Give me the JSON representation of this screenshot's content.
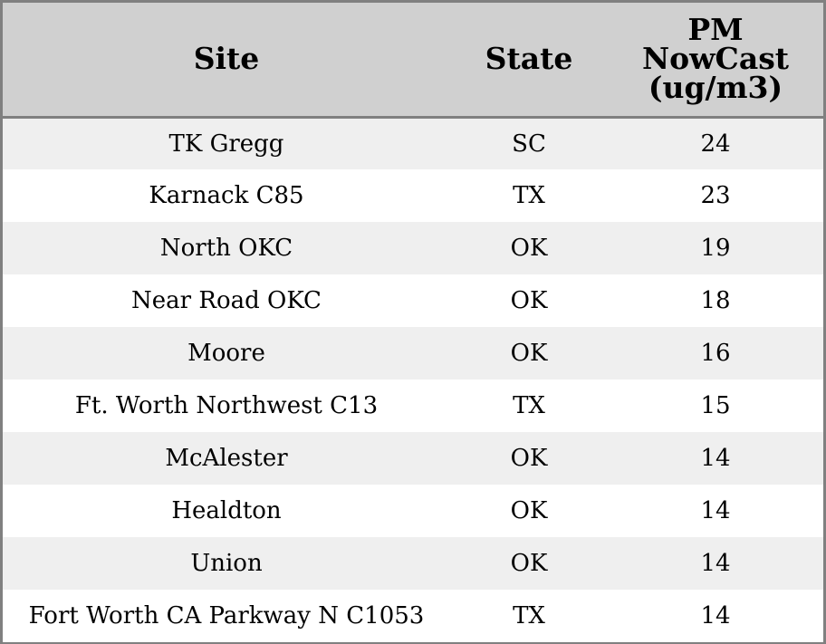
{
  "chart_data": {
    "type": "table",
    "columns": [
      "Site",
      "State",
      "PM\nNowCast\n(ug/m3)"
    ],
    "column_lines": {
      "site": [
        "Site"
      ],
      "state": [
        "State"
      ],
      "pm": [
        "PM",
        "NowCast",
        "(ug/m3)"
      ]
    },
    "rows": [
      {
        "site": "TK Gregg",
        "state": "SC",
        "pm": "24"
      },
      {
        "site": "Karnack C85",
        "state": "TX",
        "pm": "23"
      },
      {
        "site": "North OKC",
        "state": "OK",
        "pm": "19"
      },
      {
        "site": "Near Road OKC",
        "state": "OK",
        "pm": "18"
      },
      {
        "site": "Moore",
        "state": "OK",
        "pm": "16"
      },
      {
        "site": "Ft. Worth Northwest C13",
        "state": "TX",
        "pm": "15"
      },
      {
        "site": "McAlester",
        "state": "OK",
        "pm": "14"
      },
      {
        "site": "Healdton",
        "state": "OK",
        "pm": "14"
      },
      {
        "site": "Union",
        "state": "OK",
        "pm": "14"
      },
      {
        "site": "Fort Worth CA Parkway N C1053",
        "state": "TX",
        "pm": "14"
      }
    ]
  },
  "colors": {
    "header_bg": "#d0d0d0",
    "row_alt_bg": "#efefef",
    "row_bg": "#ffffff",
    "border": "#808080",
    "text": "#000000"
  }
}
